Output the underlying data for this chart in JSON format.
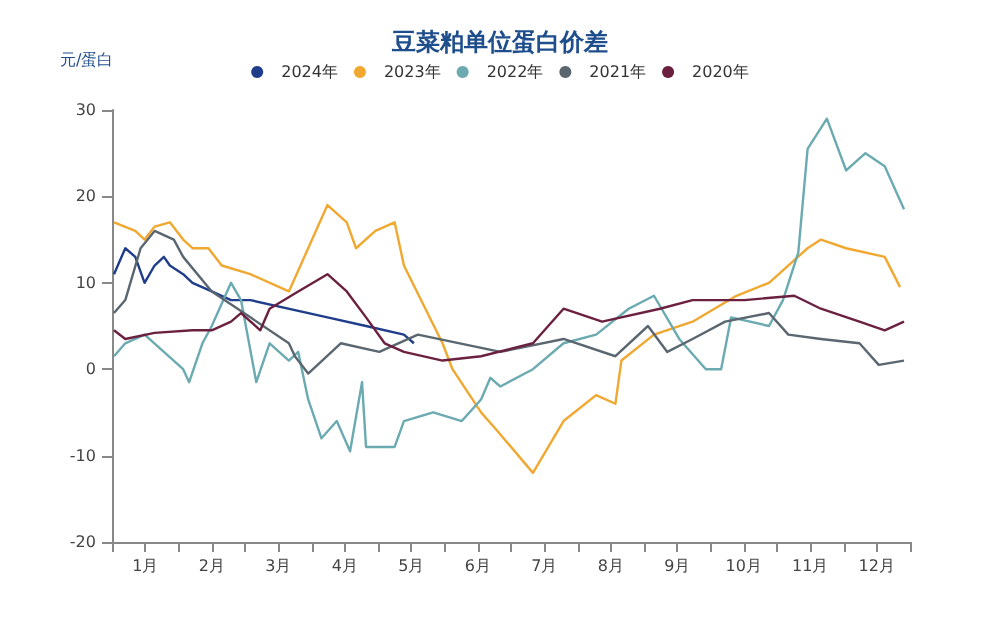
{
  "chart_data": {
    "type": "line",
    "title": "豆菜粕单位蛋白价差",
    "ylabel": "元/蛋白",
    "xlim": [
      0,
      12
    ],
    "xticks": [
      {
        "value": 0,
        "label": null
      },
      {
        "value": 0.5,
        "label": "1月"
      },
      {
        "value": 1,
        "label": null
      },
      {
        "value": 1.5,
        "label": "2月"
      },
      {
        "value": 2,
        "label": null
      },
      {
        "value": 2.5,
        "label": "3月"
      },
      {
        "value": 3,
        "label": null
      },
      {
        "value": 3.5,
        "label": "4月"
      },
      {
        "value": 4,
        "label": null
      },
      {
        "value": 4.5,
        "label": "5月"
      },
      {
        "value": 5,
        "label": null
      },
      {
        "value": 5.5,
        "label": "6月"
      },
      {
        "value": 6,
        "label": null
      },
      {
        "value": 6.5,
        "label": "7月"
      },
      {
        "value": 7,
        "label": null
      },
      {
        "value": 7.5,
        "label": "8月"
      },
      {
        "value": 8,
        "label": null
      },
      {
        "value": 8.5,
        "label": "9月"
      },
      {
        "value": 9,
        "label": null
      },
      {
        "value": 9.5,
        "label": "10月"
      },
      {
        "value": 10,
        "label": null
      },
      {
        "value": 10.5,
        "label": "11月"
      },
      {
        "value": 11,
        "label": null
      },
      {
        "value": 11.5,
        "label": "12月"
      },
      {
        "value": 12,
        "label": null
      }
    ],
    "ylim": [
      -20,
      30
    ],
    "yticks": [
      -20,
      -10,
      0,
      10,
      20,
      30
    ],
    "grid": false,
    "legend": "top",
    "series": [
      {
        "name": "2024年",
        "color": "#1f3d8a",
        "x": [
          0.03,
          0.2,
          0.35,
          0.49,
          0.64,
          0.78,
          0.87,
          1.07,
          1.21,
          1.5,
          1.79,
          2.08,
          3.24,
          3.82,
          4.39,
          4.54
        ],
        "values": [
          11,
          14,
          13,
          10,
          12,
          13,
          12,
          11,
          10,
          9,
          8,
          8,
          6,
          5,
          4,
          3
        ]
      },
      {
        "name": "2023年",
        "color": "#f0a830",
        "x": [
          0.03,
          0.35,
          0.49,
          0.64,
          0.87,
          1.07,
          1.21,
          1.45,
          1.65,
          2.08,
          2.66,
          3.24,
          3.53,
          3.67,
          3.96,
          4.25,
          4.39,
          4.97,
          5.12,
          5.55,
          5.78,
          6.33,
          6.79,
          7.28,
          7.57,
          7.66,
          8.15,
          8.73,
          9.39,
          9.88,
          10.46,
          10.66,
          11.04,
          11.62,
          11.85
        ],
        "values": [
          17,
          16,
          15,
          16.5,
          17,
          15,
          14,
          14,
          12,
          11,
          9,
          19,
          17,
          14,
          16,
          17,
          12,
          3,
          0,
          -5,
          -7,
          -12,
          -6,
          -3,
          -4,
          1,
          4,
          5.5,
          8.5,
          10,
          14,
          15,
          14,
          13,
          9.5
        ]
      },
      {
        "name": "2022年",
        "color": "#6aaab0",
        "x": [
          0.03,
          0.2,
          0.49,
          0.78,
          1.07,
          1.16,
          1.36,
          1.5,
          1.79,
          1.94,
          2.17,
          2.37,
          2.66,
          2.8,
          2.95,
          3.15,
          3.38,
          3.58,
          3.76,
          3.82,
          4.25,
          4.39,
          4.83,
          5.26,
          5.55,
          5.69,
          5.84,
          6.33,
          6.79,
          7.28,
          7.77,
          8.15,
          8.53,
          8.93,
          9.16,
          9.31,
          9.88,
          10.09,
          10.32,
          10.46,
          10.75,
          11.04,
          11.33,
          11.62,
          11.91
        ],
        "values": [
          1.5,
          3,
          4,
          2,
          0,
          -1.5,
          3,
          5,
          10,
          8,
          -1.5,
          3,
          1,
          2,
          -3.5,
          -8,
          -6,
          -9.5,
          -1.5,
          -9,
          -9,
          -6,
          -5,
          -6,
          -3.5,
          -1,
          -2,
          0,
          3,
          4,
          7,
          8.5,
          3.5,
          0,
          0,
          6,
          5,
          8,
          13.5,
          25.5,
          29,
          23,
          25,
          23.5,
          18.5
        ]
      },
      {
        "name": "2021年",
        "color": "#5a6670",
        "x": [
          0.03,
          0.2,
          0.43,
          0.64,
          0.93,
          1.07,
          1.5,
          2.08,
          2.66,
          2.75,
          2.95,
          3.44,
          4.02,
          4.6,
          5.84,
          6.79,
          7.57,
          8.06,
          8.35,
          8.73,
          9.22,
          9.88,
          10.17,
          10.66,
          11.24,
          11.53,
          11.91
        ],
        "values": [
          6.5,
          8,
          14,
          16,
          15,
          13,
          9,
          6,
          3,
          1.5,
          -0.5,
          3,
          2,
          4,
          2,
          3.5,
          1.5,
          5,
          2,
          3.5,
          5.5,
          6.5,
          4,
          3.5,
          3,
          0.5,
          1
        ]
      },
      {
        "name": "2020年",
        "color": "#6b2040",
        "x": [
          0.03,
          0.2,
          0.64,
          1.21,
          1.5,
          1.79,
          1.94,
          2.23,
          2.37,
          2.8,
          3.24,
          3.53,
          3.82,
          4.1,
          4.39,
          4.97,
          5.55,
          6.33,
          6.79,
          7.37,
          8.24,
          8.73,
          9.51,
          10.26,
          10.66,
          11.24,
          11.62,
          11.91
        ],
        "values": [
          4.5,
          3.5,
          4.2,
          4.5,
          4.5,
          5.5,
          6.5,
          4.5,
          7,
          9,
          11,
          9,
          6,
          3,
          2,
          1,
          1.5,
          3,
          7,
          5.5,
          7,
          8,
          8,
          8.5,
          7,
          5.5,
          4.5,
          5.5
        ]
      }
    ]
  }
}
